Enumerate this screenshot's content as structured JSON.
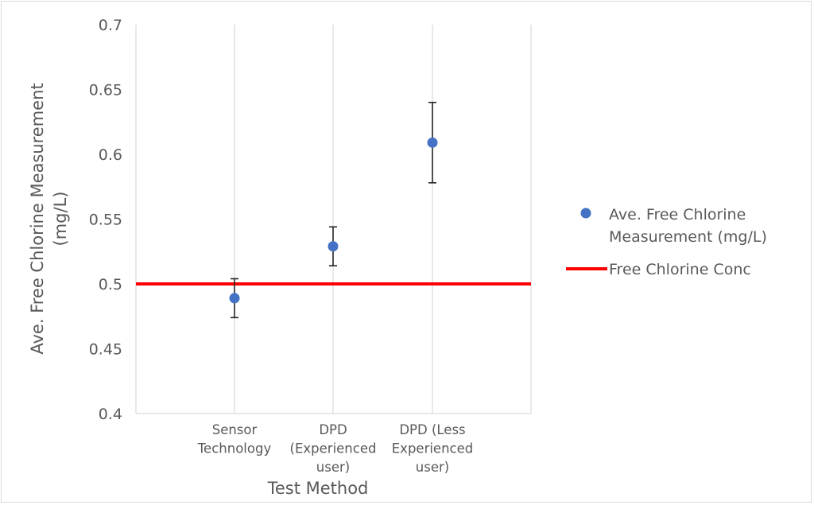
{
  "chart_data": {
    "type": "scatter",
    "xlabel": "Test Method",
    "ylabel_lines": [
      "Ave. Free Chlorine Measurement",
      "(mg/L)"
    ],
    "ylim": [
      0.4,
      0.7
    ],
    "yticks": [
      "0.4",
      "0.45",
      "0.5",
      "0.55",
      "0.6",
      "0.65",
      "0.7"
    ],
    "grid": "vertical",
    "legend_position": "right",
    "categories": [
      [
        "Sensor",
        "Technology"
      ],
      [
        "DPD",
        "(Experienced",
        "user)"
      ],
      [
        "DPD (Less",
        "Experienced",
        "user)"
      ]
    ],
    "series": [
      {
        "name_lines": [
          "Ave. Free Chlorine",
          "Measurement (mg/L)"
        ],
        "kind": "scatter",
        "color": "#4472c4",
        "values": [
          0.489,
          0.529,
          0.609
        ],
        "error_low": [
          0.474,
          0.514,
          0.578
        ],
        "error_high": [
          0.504,
          0.544,
          0.64
        ]
      },
      {
        "name_lines": [
          "Free Chlorine Conc"
        ],
        "kind": "line",
        "color": "#ff0000",
        "value": 0.5
      }
    ]
  }
}
